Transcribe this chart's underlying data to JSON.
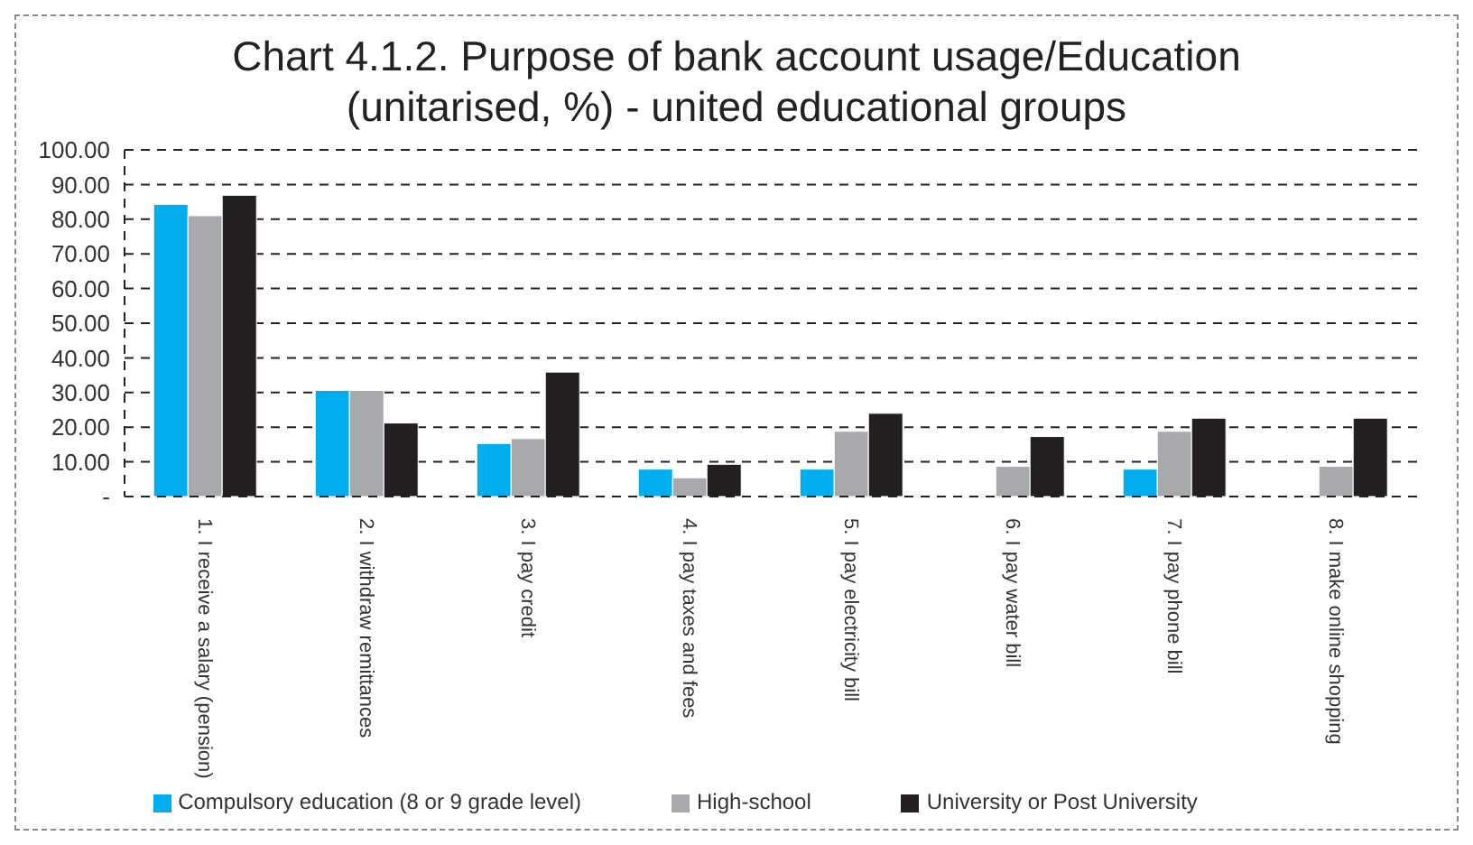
{
  "chart_data": {
    "type": "bar",
    "title": "Chart 4.1.2. Purpose of bank account usage/Education\n(unitarised, %) - united educational groups",
    "categories": [
      "1. I receive a salary (pension)",
      "2. I withdraw remittances",
      "3. I pay credit",
      "4. I pay taxes and fees",
      "5. I pay electricity bill",
      "6. I pay water bill",
      "7. I pay phone bill",
      "8. I make online shopping"
    ],
    "series": [
      {
        "name": "Compulsory education (8 or 9 grade level)",
        "color": "#00aeef",
        "values": [
          84.3,
          30.6,
          15.3,
          7.9,
          7.9,
          0,
          7.9,
          0
        ]
      },
      {
        "name": "High-school",
        "color": "#a7a9ac",
        "values": [
          81.0,
          30.6,
          16.7,
          5.4,
          18.8,
          8.7,
          18.8,
          8.7
        ]
      },
      {
        "name": "University or Post University",
        "color": "#231f20",
        "values": [
          86.9,
          21.2,
          35.9,
          9.3,
          24.0,
          17.3,
          22.6,
          22.6
        ]
      }
    ],
    "ylim": [
      0,
      100
    ],
    "yticks": [
      {
        "value": 0,
        "label": "-"
      },
      {
        "value": 10,
        "label": "10.00"
      },
      {
        "value": 20,
        "label": "20.00"
      },
      {
        "value": 30,
        "label": "30.00"
      },
      {
        "value": 40,
        "label": "40.00"
      },
      {
        "value": 50,
        "label": "50.00"
      },
      {
        "value": 60,
        "label": "60.00"
      },
      {
        "value": 70,
        "label": "70.00"
      },
      {
        "value": 80,
        "label": "80.00"
      },
      {
        "value": 90,
        "label": "90.00"
      },
      {
        "value": 100,
        "label": "100.00"
      }
    ],
    "grid": "y",
    "legend": "bottom"
  }
}
